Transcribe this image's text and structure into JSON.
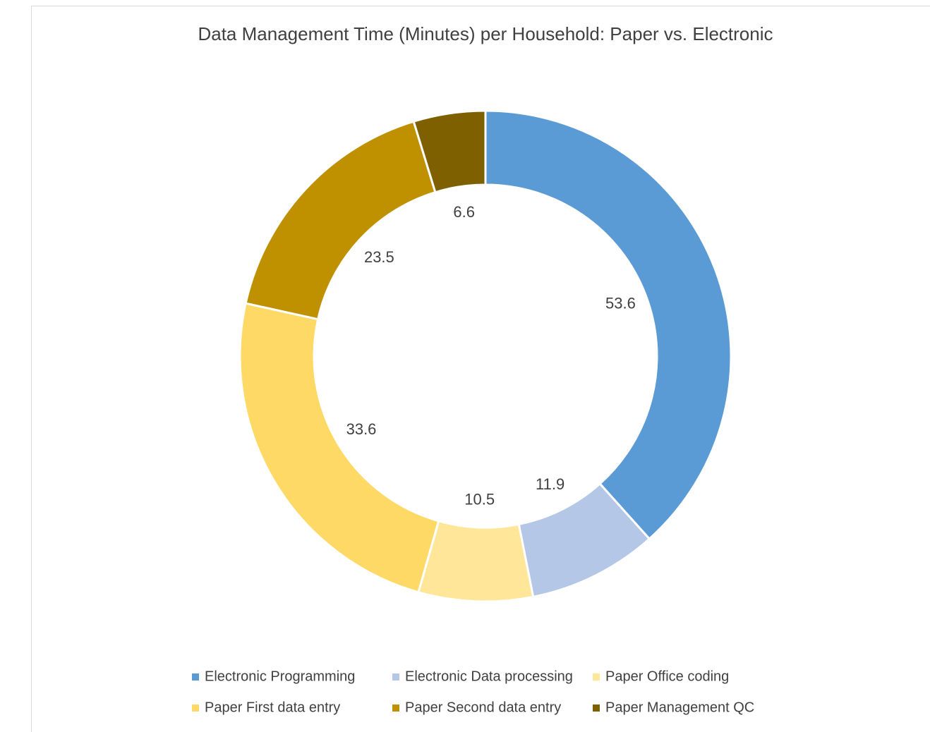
{
  "chart_data": {
    "type": "donut",
    "title": "Data Management Time (Minutes) per Household: Paper vs. Electronic",
    "categories": [
      "Electronic Programming",
      "Electronic Data processing",
      "Paper Office coding",
      "Paper First data entry",
      "Paper Second data entry",
      "Paper Management QC"
    ],
    "values": [
      53.6,
      11.9,
      10.5,
      33.6,
      23.5,
      6.6
    ],
    "colors": [
      "#5b9bd5",
      "#b4c7e7",
      "#ffe699",
      "#ffd966",
      "#bf9000",
      "#7f6000"
    ],
    "legend": "bottom"
  }
}
